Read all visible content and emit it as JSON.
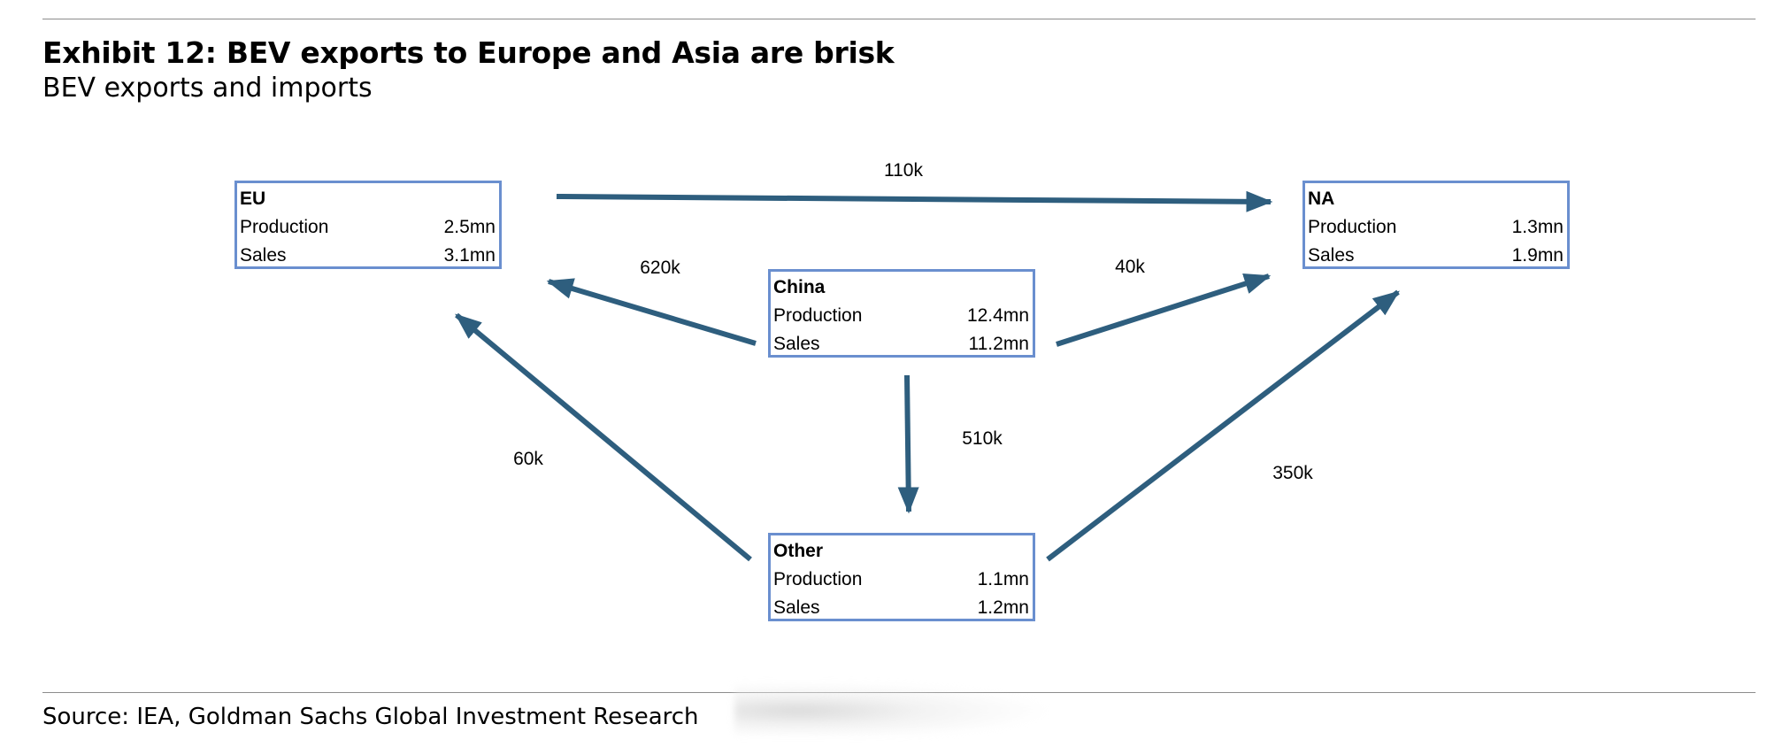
{
  "header": {
    "title": "Exhibit 12: BEV exports to Europe and Asia are brisk",
    "subtitle": "BEV exports and imports"
  },
  "nodes": {
    "eu": {
      "name": "EU",
      "production_label": "Production",
      "production": "2.5mn",
      "sales_label": "Sales",
      "sales": "3.1mn"
    },
    "na": {
      "name": "NA",
      "production_label": "Production",
      "production": "1.3mn",
      "sales_label": "Sales",
      "sales": "1.9mn"
    },
    "china": {
      "name": "China",
      "production_label": "Production",
      "production": "12.4mn",
      "sales_label": "Sales",
      "sales": "11.2mn"
    },
    "other": {
      "name": "Other",
      "production_label": "Production",
      "production": "1.1mn",
      "sales_label": "Sales",
      "sales": "1.2mn"
    }
  },
  "flows": {
    "eu_to_na": "110k",
    "china_to_eu": "620k",
    "china_to_na": "40k",
    "china_to_other": "510k",
    "other_to_eu": "60k",
    "other_to_na": "350k"
  },
  "colors": {
    "arrow": "#2e5e7e",
    "box_border": "#6a8fcf"
  },
  "footer": {
    "source": "Source: IEA, Goldman Sachs Global Investment Research"
  }
}
